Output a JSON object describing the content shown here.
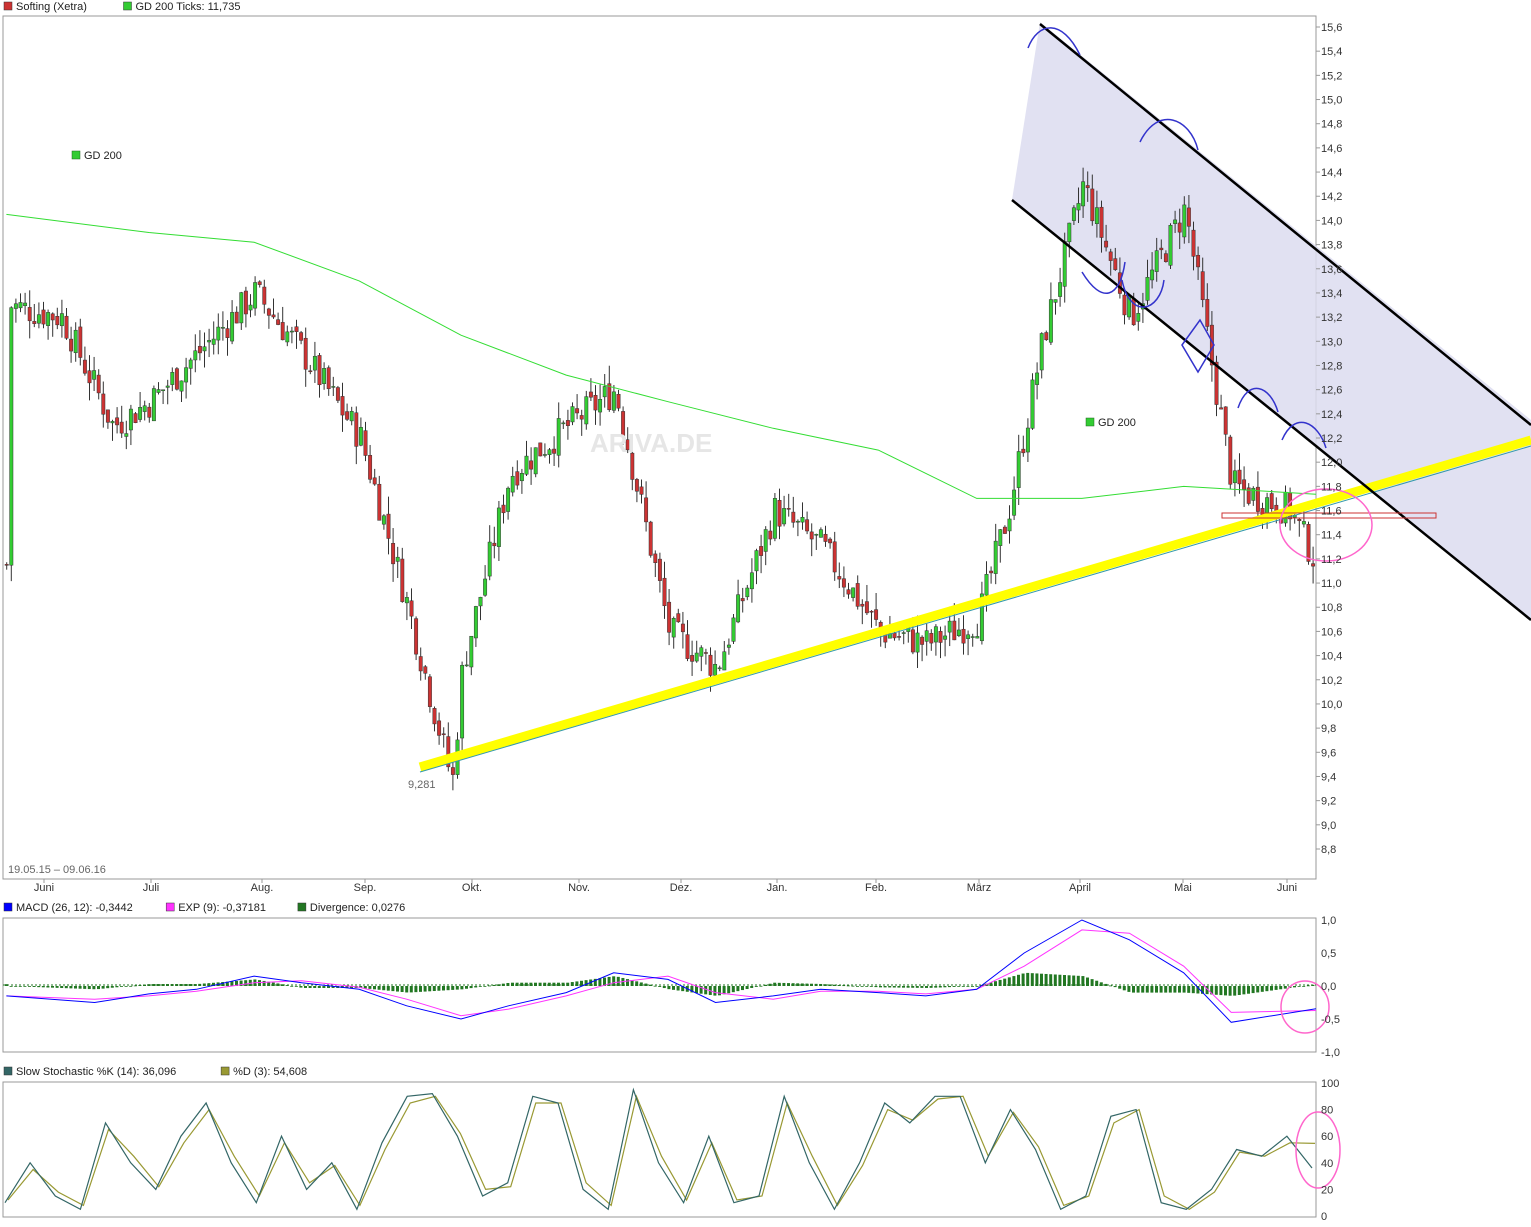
{
  "colors": {
    "candle_up": "#33cc33",
    "candle_down": "#cc3333",
    "gd200": "#33dd33",
    "trend_support": "#ffff00",
    "channel_fill": "#dcdcf0",
    "channel_lines": "#000000",
    "macd": "#0000ff",
    "exp": "#ff33ff",
    "divergence": "#227722",
    "stoch_k": "#336666",
    "stoch_d": "#999933",
    "annotation_pink": "#ff66cc",
    "annotation_blue": "#3333cc",
    "frame": "#999999"
  },
  "price_panel": {
    "legend": [
      {
        "label": "Softing (Xetra)",
        "color": "#cc3333"
      },
      {
        "label": "GD 200 Ticks: 11,735",
        "color": "#33cc33"
      }
    ],
    "gd200_label_1": "GD 200",
    "gd200_label_2": "GD 200",
    "low_label": "9,281",
    "date_range": "19.05.15 – 09.06.16",
    "watermark": "ARIVA.DE",
    "y_ticks": [
      "15,6",
      "15,4",
      "15,2",
      "15,0",
      "14,8",
      "14,6",
      "14,4",
      "14,2",
      "14,0",
      "13,8",
      "13,6",
      "13,4",
      "13,2",
      "13,0",
      "12,8",
      "12,6",
      "12,4",
      "12,2",
      "12,0",
      "11,8",
      "11,6",
      "11,4",
      "11,2",
      "11,0",
      "10,8",
      "10,6",
      "10,4",
      "10,2",
      "10,0",
      "9,8",
      "9,6",
      "9,4",
      "9,2",
      "9,0",
      "8,8"
    ],
    "x_ticks": [
      "Juni",
      "Juli",
      "Aug.",
      "Sep.",
      "Okt.",
      "Nov.",
      "Dez.",
      "Jan.",
      "Feb.",
      "März",
      "April",
      "Mai",
      "Juni"
    ]
  },
  "macd_panel": {
    "legend": [
      {
        "label": "MACD (26, 12): -0,3442",
        "color": "#0000ff"
      },
      {
        "label": "EXP (9): -0,37181",
        "color": "#ff33ff"
      },
      {
        "label": "Divergence: 0,0276",
        "color": "#227722"
      }
    ],
    "y_ticks": [
      "1,0",
      "0,5",
      "0,0",
      "-0,5",
      "-1,0"
    ]
  },
  "stoch_panel": {
    "legend": [
      {
        "label": "Slow Stochastic %K (14): 36,096",
        "color": "#336666"
      },
      {
        "label": "%D (3): 54,608",
        "color": "#999933"
      }
    ],
    "y_ticks": [
      "100",
      "80",
      "60",
      "40",
      "20",
      "0"
    ]
  },
  "chart_data": [
    {
      "type": "candlestick",
      "title": "Softing (Xetra)",
      "period": "19.05.15 – 09.06.16",
      "ylim": [
        8.6,
        15.8
      ],
      "low_marker": 9.281,
      "series": [
        {
          "name": "Softing (Xetra)",
          "x": [
            "2015-05-20",
            "2015-06-05",
            "2015-06-20",
            "2015-07-01",
            "2015-07-15",
            "2015-08-01",
            "2015-08-15",
            "2015-09-01",
            "2015-09-15",
            "2015-09-28",
            "2015-10-01",
            "2015-10-15",
            "2015-11-01",
            "2015-11-15",
            "2015-12-01",
            "2015-12-15",
            "2016-01-01",
            "2016-01-15",
            "2016-02-01",
            "2016-02-15",
            "2016-03-01",
            "2016-03-10",
            "2016-03-20",
            "2016-04-01",
            "2016-04-15",
            "2016-05-01",
            "2016-05-15",
            "2016-06-01",
            "2016-06-09"
          ],
          "close": [
            13.3,
            13.2,
            12.3,
            12.5,
            12.9,
            13.4,
            12.9,
            12.2,
            10.8,
            9.35,
            10.3,
            11.9,
            12.3,
            12.6,
            10.6,
            10.3,
            11.6,
            11.3,
            10.6,
            10.5,
            10.7,
            11.6,
            13.0,
            14.3,
            13.2,
            14.1,
            11.8,
            11.6,
            11.15
          ]
        },
        {
          "name": "GD 200",
          "x": [
            "2015-05-20",
            "2015-07-01",
            "2015-08-01",
            "2015-09-01",
            "2015-10-01",
            "2015-11-01",
            "2015-12-01",
            "2016-01-01",
            "2016-02-01",
            "2016-03-01",
            "2016-04-01",
            "2016-05-01",
            "2016-06-09"
          ],
          "values": [
            14.05,
            13.9,
            13.82,
            13.5,
            13.05,
            12.72,
            12.5,
            12.28,
            12.1,
            11.7,
            11.7,
            11.8,
            11.735
          ]
        }
      ]
    },
    {
      "type": "line",
      "title": "MACD (26, 12)",
      "ylim": [
        -1.0,
        1.0
      ],
      "x": [
        "2015-05-20",
        "2015-06-15",
        "2015-07-01",
        "2015-07-15",
        "2015-08-01",
        "2015-08-15",
        "2015-09-01",
        "2015-09-15",
        "2015-10-01",
        "2015-10-15",
        "2015-11-01",
        "2015-11-15",
        "2015-12-01",
        "2015-12-15",
        "2016-01-01",
        "2016-01-15",
        "2016-02-01",
        "2016-02-15",
        "2016-03-01",
        "2016-03-15",
        "2016-04-01",
        "2016-04-15",
        "2016-05-01",
        "2016-05-15",
        "2016-06-09"
      ],
      "series": [
        {
          "name": "MACD (26, 12)",
          "values": [
            -0.15,
            -0.25,
            -0.12,
            -0.05,
            0.15,
            0.05,
            -0.05,
            -0.3,
            -0.5,
            -0.3,
            -0.1,
            0.2,
            0.1,
            -0.25,
            -0.15,
            -0.05,
            -0.1,
            -0.15,
            -0.05,
            0.5,
            1.0,
            0.7,
            0.2,
            -0.55,
            -0.3442
          ]
        },
        {
          "name": "EXP (9)",
          "values": [
            -0.15,
            -0.2,
            -0.15,
            -0.08,
            0.05,
            0.08,
            -0.02,
            -0.2,
            -0.45,
            -0.35,
            -0.15,
            0.05,
            0.15,
            -0.1,
            -0.2,
            -0.08,
            -0.08,
            -0.12,
            -0.05,
            0.3,
            0.85,
            0.8,
            0.3,
            -0.4,
            -0.37181
          ]
        },
        {
          "name": "Divergence",
          "values": [
            0.0,
            -0.05,
            0.03,
            0.03,
            0.1,
            -0.03,
            -0.03,
            -0.1,
            -0.05,
            0.05,
            0.05,
            0.15,
            -0.05,
            -0.15,
            0.05,
            0.03,
            -0.02,
            -0.03,
            0.0,
            0.2,
            0.15,
            -0.1,
            -0.1,
            -0.15,
            0.0276
          ]
        }
      ]
    },
    {
      "type": "line",
      "title": "Slow Stochastic",
      "ylim": [
        0,
        100
      ],
      "series": [
        {
          "name": "Slow Stochastic %K (14)",
          "values": [
            10,
            40,
            15,
            5,
            70,
            40,
            20,
            60,
            85,
            40,
            10,
            60,
            20,
            40,
            5,
            55,
            90,
            92,
            60,
            15,
            25,
            90,
            85,
            20,
            5,
            95,
            40,
            10,
            60,
            10,
            15,
            90,
            40,
            5,
            40,
            85,
            70,
            90,
            90,
            40,
            80,
            50,
            5,
            15,
            75,
            80,
            10,
            5,
            20,
            50,
            45,
            60,
            36.096
          ]
        },
        {
          "name": "%D (3)",
          "values": [
            12,
            35,
            18,
            8,
            65,
            45,
            22,
            55,
            80,
            45,
            15,
            55,
            25,
            38,
            8,
            50,
            85,
            90,
            62,
            20,
            22,
            85,
            85,
            25,
            8,
            90,
            45,
            12,
            55,
            12,
            15,
            85,
            45,
            8,
            38,
            80,
            72,
            88,
            90,
            45,
            78,
            52,
            8,
            15,
            70,
            80,
            15,
            5,
            18,
            48,
            45,
            55,
            54.608
          ]
        }
      ]
    }
  ]
}
